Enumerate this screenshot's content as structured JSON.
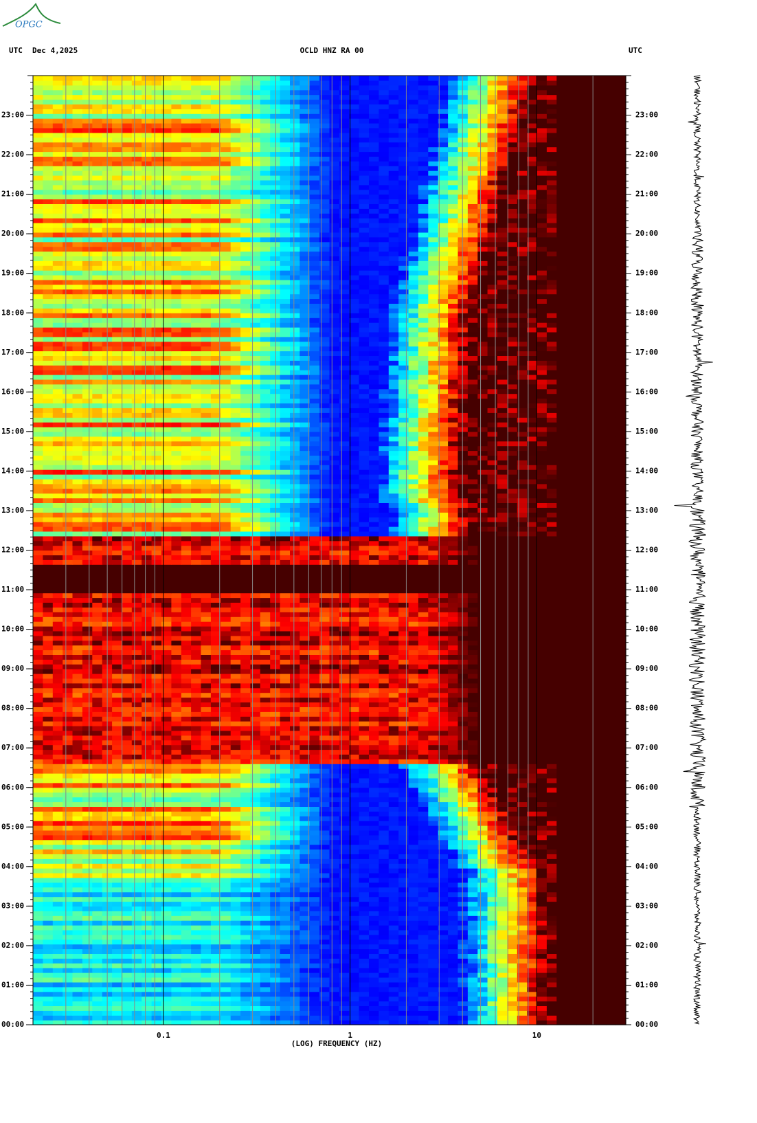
{
  "chart_data": {
    "type": "spectrogram",
    "logo": "OPGC",
    "timezone_left": "UTC",
    "date": "Dec 4,2025",
    "title": "OCLD HNZ RA 00",
    "timezone_right": "UTC",
    "xlabel": "(LOG) FREQUENCY (HZ)",
    "xscale": "log",
    "xlim": [
      0.02,
      30
    ],
    "xticks": [
      0.1,
      1,
      10
    ],
    "ylim": [
      0,
      24
    ],
    "yticks": [
      {
        "value": 0,
        "label": "00:00"
      },
      {
        "value": 1,
        "label": "01:00"
      },
      {
        "value": 2,
        "label": "02:00"
      },
      {
        "value": 3,
        "label": "03:00"
      },
      {
        "value": 4,
        "label": "04:00"
      },
      {
        "value": 5,
        "label": "05:00"
      },
      {
        "value": 6,
        "label": "06:00"
      },
      {
        "value": 7,
        "label": "07:00"
      },
      {
        "value": 8,
        "label": "08:00"
      },
      {
        "value": 9,
        "label": "09:00"
      },
      {
        "value": 10,
        "label": "10:00"
      },
      {
        "value": 11,
        "label": "11:00"
      },
      {
        "value": 12,
        "label": "12:00"
      },
      {
        "value": 13,
        "label": "13:00"
      },
      {
        "value": 14,
        "label": "14:00"
      },
      {
        "value": 15,
        "label": "15:00"
      },
      {
        "value": 16,
        "label": "16:00"
      },
      {
        "value": 17,
        "label": "17:00"
      },
      {
        "value": 18,
        "label": "18:00"
      },
      {
        "value": 19,
        "label": "19:00"
      },
      {
        "value": 20,
        "label": "20:00"
      },
      {
        "value": 21,
        "label": "21:00"
      },
      {
        "value": 22,
        "label": "22:00"
      },
      {
        "value": 23,
        "label": "23:00"
      }
    ],
    "grid": true
  }
}
